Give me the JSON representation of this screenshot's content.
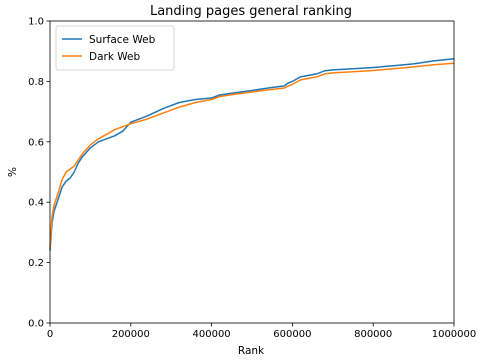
{
  "chart_data": {
    "type": "line",
    "title": "Landing pages general ranking",
    "xlabel": "Rank",
    "ylabel": "%",
    "xlim": [
      0,
      1000000
    ],
    "ylim": [
      0.0,
      1.0
    ],
    "x_ticks": [
      0,
      200000,
      400000,
      600000,
      800000,
      1000000
    ],
    "x_tick_labels": [
      "0",
      "200000",
      "400000",
      "600000",
      "800000",
      "1000000"
    ],
    "y_ticks": [
      0.0,
      0.2,
      0.4,
      0.6,
      0.8,
      1.0
    ],
    "y_tick_labels": [
      "0.0",
      "0.2",
      "0.4",
      "0.6",
      "0.8",
      "1.0"
    ],
    "grid": false,
    "legend_position": "top-left",
    "series": [
      {
        "name": "Surface Web",
        "color": "#1f77b4",
        "x": [
          0,
          5000,
          10000,
          20000,
          30000,
          40000,
          50000,
          60000,
          70000,
          80000,
          90000,
          100000,
          120000,
          140000,
          160000,
          180000,
          200000,
          240000,
          280000,
          320000,
          360000,
          400000,
          420000,
          460000,
          500000,
          540000,
          580000,
          590000,
          600000,
          620000,
          660000,
          680000,
          700000,
          750000,
          800000,
          850000,
          900000,
          950000,
          1000000
        ],
        "y": [
          0.24,
          0.33,
          0.37,
          0.41,
          0.45,
          0.47,
          0.48,
          0.5,
          0.53,
          0.55,
          0.565,
          0.58,
          0.6,
          0.61,
          0.62,
          0.635,
          0.665,
          0.685,
          0.71,
          0.73,
          0.74,
          0.745,
          0.755,
          0.763,
          0.77,
          0.778,
          0.785,
          0.795,
          0.8,
          0.815,
          0.825,
          0.835,
          0.838,
          0.842,
          0.846,
          0.852,
          0.858,
          0.868,
          0.875
        ]
      },
      {
        "name": "Dark Web",
        "color": "#ff7f0e",
        "x": [
          0,
          5000,
          10000,
          20000,
          30000,
          40000,
          50000,
          60000,
          70000,
          80000,
          90000,
          100000,
          120000,
          140000,
          160000,
          180000,
          200000,
          240000,
          280000,
          320000,
          360000,
          400000,
          420000,
          460000,
          500000,
          540000,
          580000,
          590000,
          600000,
          620000,
          660000,
          680000,
          700000,
          750000,
          800000,
          850000,
          900000,
          950000,
          1000000
        ],
        "y": [
          0.25,
          0.35,
          0.39,
          0.43,
          0.475,
          0.5,
          0.51,
          0.52,
          0.54,
          0.56,
          0.575,
          0.59,
          0.61,
          0.625,
          0.64,
          0.65,
          0.66,
          0.675,
          0.695,
          0.715,
          0.73,
          0.74,
          0.75,
          0.758,
          0.765,
          0.772,
          0.778,
          0.785,
          0.79,
          0.805,
          0.815,
          0.825,
          0.828,
          0.832,
          0.836,
          0.842,
          0.848,
          0.855,
          0.86
        ]
      }
    ]
  }
}
